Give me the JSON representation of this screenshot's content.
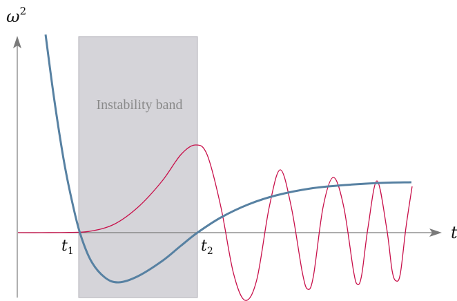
{
  "y_axis": {
    "symbol": "ω",
    "exponent": "2"
  },
  "x_axis": {
    "symbol": "t"
  },
  "band": {
    "label": "Instability band"
  },
  "markers": [
    {
      "symbol": "t",
      "subscript": "1"
    },
    {
      "symbol": "t",
      "subscript": "2"
    }
  ],
  "colors": {
    "omega_curve": "#5781a2",
    "oscillation_curve": "#c8104a",
    "band_fill": "#d5d4d9",
    "band_edge": "#b3b2b8",
    "axis": "#7a7a7a"
  }
}
